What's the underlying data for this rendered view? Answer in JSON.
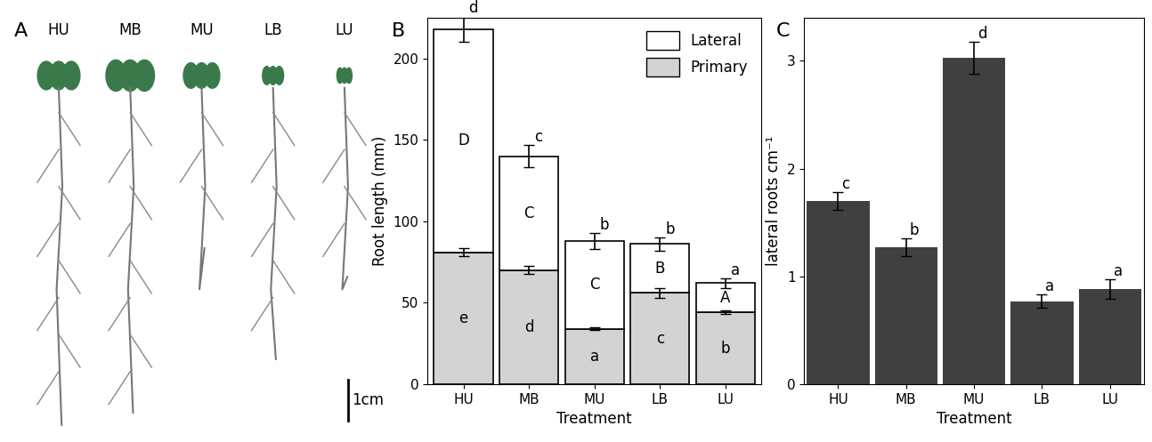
{
  "panel_a": {
    "title": "A",
    "labels": [
      "HU",
      "MB",
      "MU",
      "LB",
      "LU"
    ],
    "scale_bar": "1cm"
  },
  "chart_data": [
    {
      "type": "bar",
      "title": "B",
      "stacked": true,
      "categories": [
        "HU",
        "MB",
        "MU",
        "LB",
        "LU"
      ],
      "x_label": "Treatment",
      "y_label": "Root length (mm)",
      "ylim": [
        0,
        225
      ],
      "yticks": [
        0,
        50,
        100,
        150,
        200
      ],
      "legend": "upper right",
      "series": [
        {
          "name": "Primary",
          "color": "#d3d3d3",
          "values": [
            81,
            70,
            34,
            56,
            44
          ],
          "errors": [
            2.5,
            2.5,
            1,
            3,
            1
          ],
          "significance": [
            "e",
            "d",
            "a",
            "c",
            "b"
          ]
        },
        {
          "name": "Lateral",
          "color": "#ffffff",
          "values": [
            137,
            70,
            54,
            30,
            18
          ],
          "errors": [
            8,
            7,
            5,
            4,
            3
          ],
          "significance": [
            "D",
            "C",
            "C",
            "B",
            "A"
          ]
        }
      ],
      "total_significance": [
        "d",
        "c",
        "b",
        "b",
        "a"
      ]
    },
    {
      "type": "bar",
      "title": "C",
      "categories": [
        "HU",
        "MB",
        "MU",
        "LB",
        "LU"
      ],
      "x_label": "Treatment",
      "y_label": "lateral roots cm⁻¹",
      "ylim": [
        0,
        3.4
      ],
      "yticks": [
        0,
        1,
        2,
        3
      ],
      "color": "#404040",
      "values": [
        1.7,
        1.27,
        3.03,
        0.77,
        0.88
      ],
      "errors": [
        0.08,
        0.08,
        0.15,
        0.06,
        0.09
      ],
      "significance": [
        "c",
        "b",
        "d",
        "a",
        "a"
      ]
    }
  ]
}
